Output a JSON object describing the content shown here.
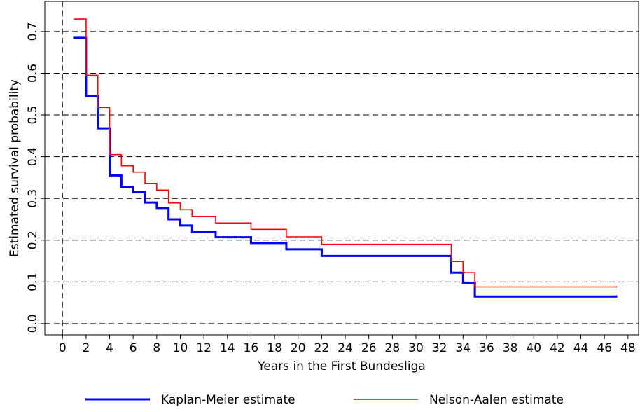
{
  "chart_data": {
    "type": "step",
    "x_label": "Years in the First Bundesliga",
    "y_label": "Estimated survival probability",
    "xlim": [
      -1.5,
      48.9
    ],
    "ylim": [
      -0.027,
      0.772
    ],
    "xticks": [
      0,
      2,
      4,
      6,
      8,
      10,
      12,
      14,
      16,
      18,
      20,
      22,
      24,
      26,
      28,
      30,
      32,
      34,
      36,
      38,
      40,
      42,
      44,
      46,
      48
    ],
    "yticks": [
      {
        "value": 0,
        "label": "0.0"
      },
      0.1,
      0.2,
      0.3,
      0.4,
      0.5,
      0.6,
      0.7
    ],
    "grid": true,
    "vline": 0,
    "legend": "bottom",
    "series": [
      {
        "name": "Kaplan-Meier estimate",
        "color": "#0000ff",
        "x": [
          1,
          2,
          3,
          4,
          5,
          6,
          7,
          8,
          9,
          10,
          11,
          13,
          16,
          19,
          22,
          33,
          34,
          35,
          47
        ],
        "values": [
          0.685,
          0.545,
          0.468,
          0.355,
          0.328,
          0.315,
          0.29,
          0.277,
          0.25,
          0.235,
          0.22,
          0.207,
          0.193,
          0.178,
          0.162,
          0.122,
          0.098,
          0.065,
          0.065
        ]
      },
      {
        "name": "Nelson-Aalen estimate",
        "color": "#ff0000",
        "x": [
          1,
          2,
          3,
          4,
          5,
          6,
          7,
          8,
          9,
          10,
          11,
          13,
          16,
          19,
          22,
          33,
          34,
          35,
          47
        ],
        "values": [
          0.73,
          0.595,
          0.518,
          0.405,
          0.378,
          0.363,
          0.336,
          0.32,
          0.289,
          0.273,
          0.257,
          0.241,
          0.226,
          0.208,
          0.19,
          0.149,
          0.122,
          0.088,
          0.088
        ]
      }
    ]
  }
}
